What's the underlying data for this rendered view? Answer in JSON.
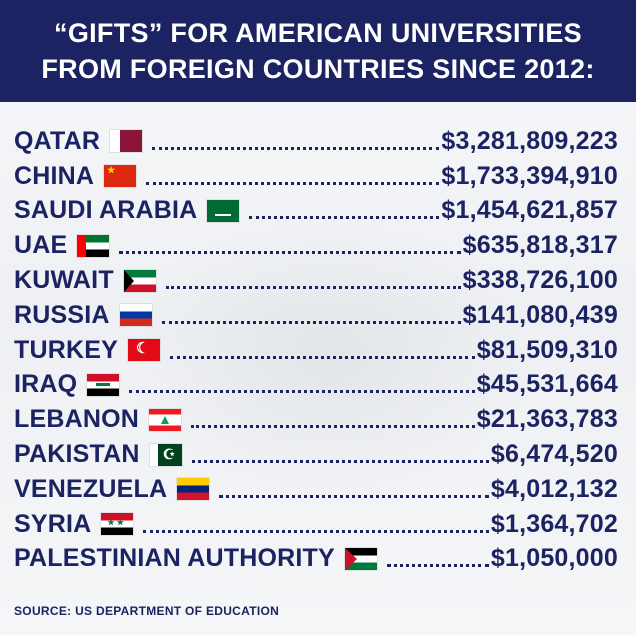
{
  "header": {
    "line1": "“GIFTS” FOR AMERICAN UNIVERSITIES",
    "line2": "FROM FOREIGN COUNTRIES SINCE 2012:"
  },
  "rows": [
    {
      "country": "QATAR",
      "amount": "$3,281,809,223",
      "flag_icon": "qatar-flag-icon"
    },
    {
      "country": "CHINA",
      "amount": "$1,733,394,910",
      "flag_icon": "china-flag-icon"
    },
    {
      "country": "SAUDI ARABIA",
      "amount": "$1,454,621,857",
      "flag_icon": "saudi-arabia-flag-icon"
    },
    {
      "country": "UAE",
      "amount": "$635,818,317",
      "flag_icon": "uae-flag-icon"
    },
    {
      "country": "KUWAIT",
      "amount": "$338,726,100",
      "flag_icon": "kuwait-flag-icon"
    },
    {
      "country": "RUSSIA",
      "amount": "$141,080,439",
      "flag_icon": "russia-flag-icon"
    },
    {
      "country": "TURKEY",
      "amount": "$81,509,310",
      "flag_icon": "turkey-flag-icon"
    },
    {
      "country": "IRAQ",
      "amount": "$45,531,664",
      "flag_icon": "iraq-flag-icon"
    },
    {
      "country": "LEBANON",
      "amount": "$21,363,783",
      "flag_icon": "lebanon-flag-icon"
    },
    {
      "country": "PAKISTAN",
      "amount": "$6,474,520",
      "flag_icon": "pakistan-flag-icon"
    },
    {
      "country": "VENEZUELA",
      "amount": "$4,012,132",
      "flag_icon": "venezuela-flag-icon"
    },
    {
      "country": "SYRIA",
      "amount": "$1,364,702",
      "flag_icon": "syria-flag-icon"
    },
    {
      "country": "PALESTINIAN AUTHORITY",
      "amount": "$1,050,000",
      "flag_icon": "palestine-flag-icon"
    }
  ],
  "source": "SOURCE: US DEPARTMENT OF EDUCATION",
  "colors": {
    "header_bg": "#1b2362",
    "text": "#1b2362",
    "header_text": "#ffffff"
  }
}
